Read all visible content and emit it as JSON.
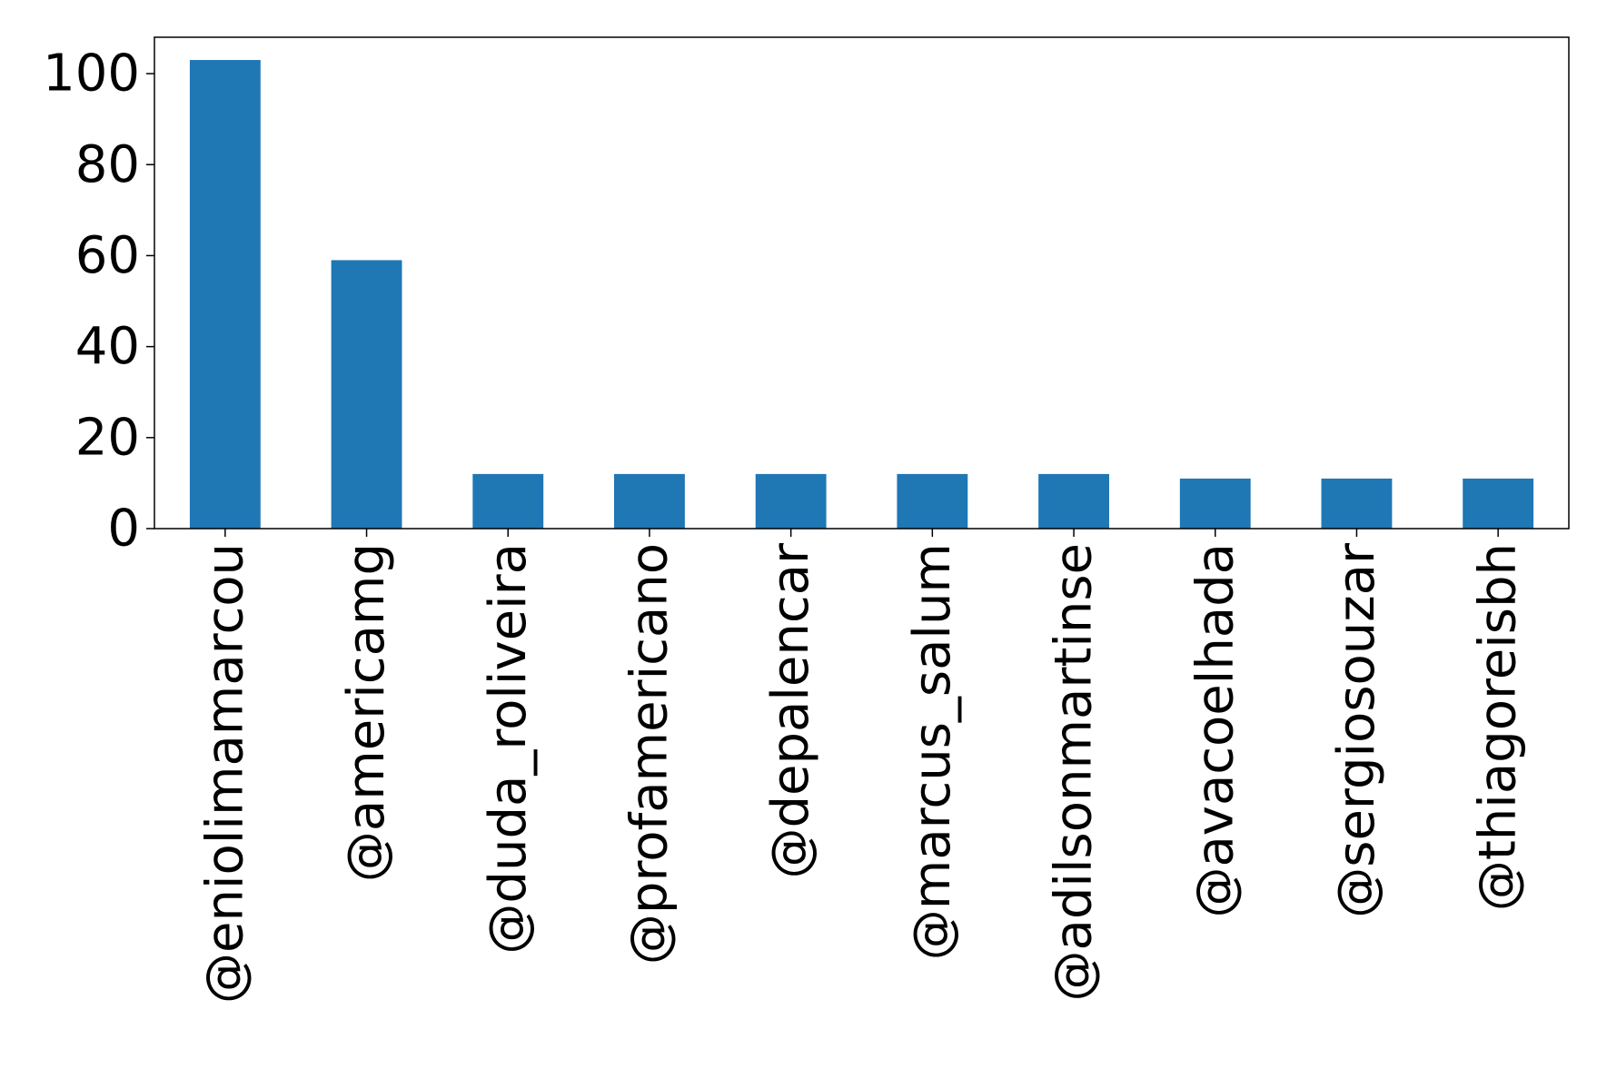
{
  "chart_data": {
    "type": "bar",
    "title": "",
    "xlabel": "",
    "ylabel": "",
    "categories": [
      "@eniolimamarcou",
      "@americamg",
      "@duda_roliveira",
      "@profamericano",
      "@depalencar",
      "@marcus_salum",
      "@adilsonmartinse",
      "@avacoelhada",
      "@sergiosouzar",
      "@thiagoreisbh"
    ],
    "values": [
      103,
      59,
      12,
      12,
      12,
      12,
      12,
      11,
      11,
      11
    ],
    "ylim": [
      0,
      108
    ],
    "yticks": [
      0,
      20,
      40,
      60,
      80,
      100
    ],
    "grid": false,
    "legend": "none",
    "bar_color": "#1f77b4"
  }
}
